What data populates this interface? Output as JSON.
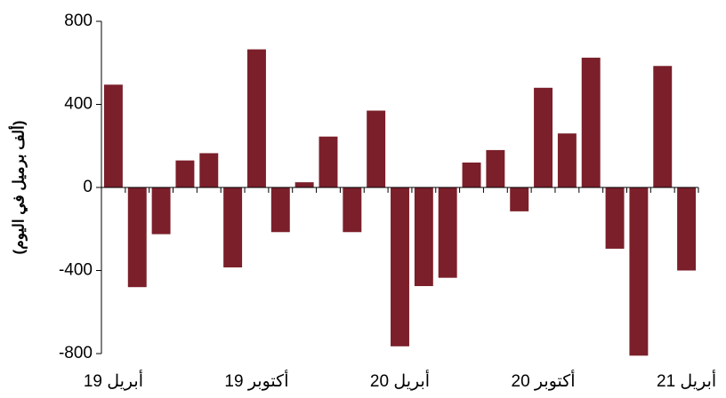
{
  "chart_data": {
    "type": "bar",
    "y_label": "(ألف برميل في اليوم)",
    "categories": [
      "أبريل 19",
      null,
      null,
      null,
      null,
      null,
      "أكتوبر 19",
      null,
      null,
      null,
      null,
      null,
      "أبريل 20",
      null,
      null,
      null,
      null,
      null,
      "أكتوبر 20",
      null,
      null,
      null,
      null,
      null,
      "أبريل 21"
    ],
    "values": [
      495,
      -480,
      -225,
      130,
      165,
      -385,
      665,
      -215,
      25,
      245,
      -215,
      370,
      -765,
      -475,
      -435,
      120,
      180,
      -115,
      480,
      260,
      625,
      -295,
      -810,
      585,
      -400
    ],
    "color": "#7b1f2a",
    "ylim": [
      -800,
      800
    ],
    "yticks": [
      -800,
      -400,
      0,
      400,
      800
    ],
    "grid": false
  }
}
